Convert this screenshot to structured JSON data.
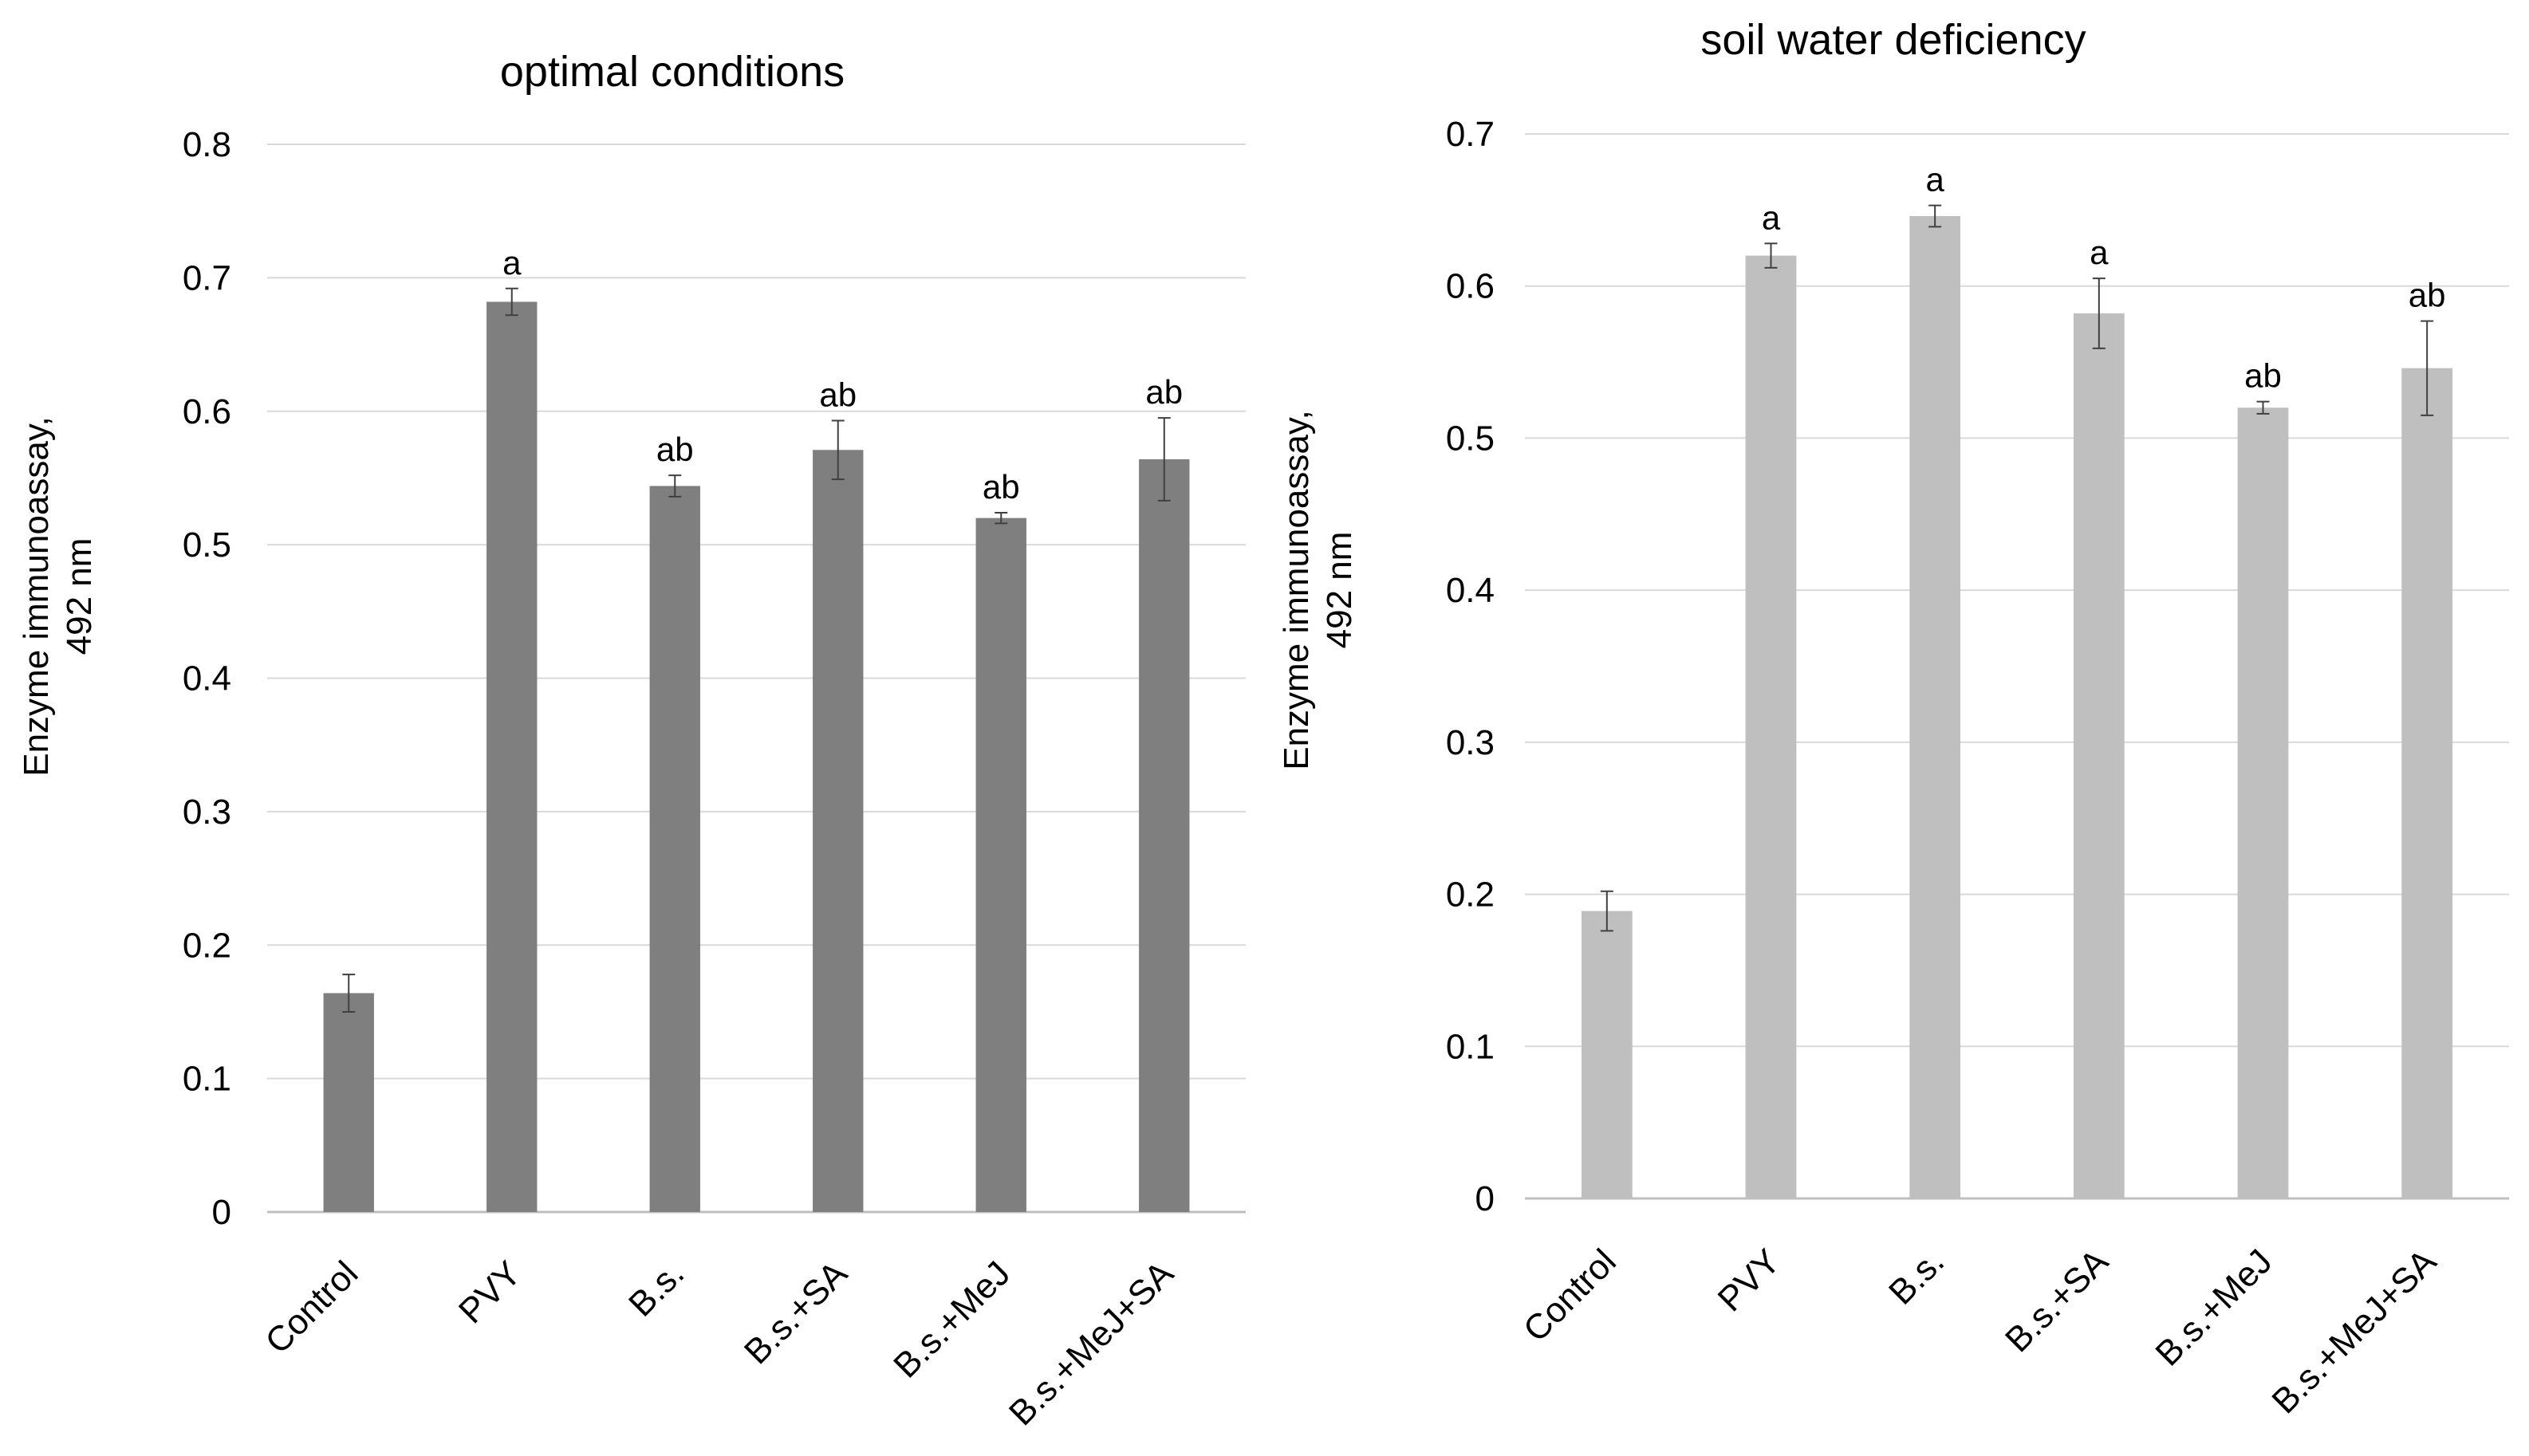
{
  "chart_data": [
    {
      "type": "bar",
      "title": "optimal conditions",
      "ylabel_lines": [
        "Enzyme  immunoassay,",
        "492 nm"
      ],
      "xlabel": "",
      "ylim": [
        0,
        0.8
      ],
      "yticks": [
        "0",
        "0.1",
        "0.2",
        "0.3",
        "0.4",
        "0.5",
        "0.6",
        "0.7",
        "0.8"
      ],
      "grid": true,
      "bar_color": "#7f7f7f",
      "categories": [
        "Control",
        "PVY",
        "B.s.",
        "B.s.+SA",
        "B.s.+MeJ",
        "B.s.+MeJ+SA"
      ],
      "values": [
        0.164,
        0.682,
        0.544,
        0.571,
        0.52,
        0.564
      ],
      "errors": [
        0.014,
        0.01,
        0.008,
        0.022,
        0.004,
        0.031
      ],
      "labels": [
        "",
        "a",
        "ab",
        "ab",
        "ab",
        "ab"
      ]
    },
    {
      "type": "bar",
      "title": "soil water deficiency",
      "ylabel_lines": [
        "Enzyme  immunoassay,",
        "492 nm"
      ],
      "xlabel": "",
      "ylim": [
        0,
        0.7
      ],
      "yticks": [
        "0",
        "0.1",
        "0.2",
        "0.3",
        "0.4",
        "0.5",
        "0.6",
        "0.7"
      ],
      "grid": true,
      "bar_color": "#bfbfbf",
      "categories": [
        "Control",
        "PVY",
        "B.s.",
        "B.s.+SA",
        "B.s.+MeJ",
        "B.s.+MeJ+SA"
      ],
      "values": [
        0.189,
        0.62,
        0.646,
        0.582,
        0.52,
        0.546
      ],
      "errors": [
        0.013,
        0.008,
        0.007,
        0.023,
        0.004,
        0.031
      ],
      "labels": [
        "",
        "a",
        "a",
        "a",
        "ab",
        "ab"
      ]
    }
  ]
}
